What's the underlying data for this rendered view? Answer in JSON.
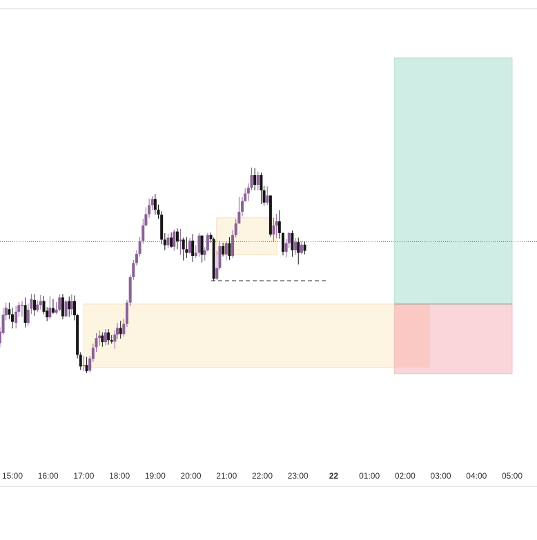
{
  "chart_data": {
    "type": "candlestick",
    "x_axis": {
      "ticks": [
        {
          "label": "15:00",
          "h": 15,
          "bold": false
        },
        {
          "label": "16:00",
          "h": 16,
          "bold": false
        },
        {
          "label": "17:00",
          "h": 17,
          "bold": false
        },
        {
          "label": "18:00",
          "h": 18,
          "bold": false
        },
        {
          "label": "19:00",
          "h": 19,
          "bold": false
        },
        {
          "label": "20:00",
          "h": 20,
          "bold": false
        },
        {
          "label": "21:00",
          "h": 21,
          "bold": false
        },
        {
          "label": "22:00",
          "h": 22,
          "bold": false
        },
        {
          "label": "23:00",
          "h": 23,
          "bold": false
        },
        {
          "label": "22",
          "h": 24,
          "bold": true
        },
        {
          "label": "01:00",
          "h": 25,
          "bold": false
        },
        {
          "label": "02:00",
          "h": 26,
          "bold": false
        },
        {
          "label": "03:00",
          "h": 27,
          "bold": false
        },
        {
          "label": "04:00",
          "h": 28,
          "bold": false
        },
        {
          "label": "05:00",
          "h": 29,
          "bold": false
        }
      ],
      "range_hours": [
        14.05,
        29.3
      ]
    },
    "y_range": [
      0,
      100
    ],
    "candles": [
      [
        14.1,
        56.0,
        58.4,
        54.0,
        60.0
      ],
      [
        14.21,
        57.6,
        54.6,
        53.0,
        59.4
      ],
      [
        14.29,
        52.8,
        48.0,
        46.0,
        54.2
      ],
      [
        14.38,
        45.0,
        42.2,
        40.0,
        47.0
      ],
      [
        14.47,
        40.0,
        37.6,
        35.6,
        42.0
      ],
      [
        14.56,
        37.0,
        30.4,
        28.0,
        38.2
      ],
      [
        14.65,
        30.0,
        34.6,
        28.4,
        36.4
      ],
      [
        14.74,
        34.0,
        41.2,
        33.2,
        44.0
      ],
      [
        14.82,
        41.0,
        44.0,
        39.0,
        46.0
      ],
      [
        14.91,
        43.4,
        41.2,
        39.4,
        46.0
      ],
      [
        15.0,
        41.4,
        38.4,
        35.8,
        44.0
      ],
      [
        15.1,
        38.0,
        42.4,
        35.8,
        44.6
      ],
      [
        15.18,
        42.4,
        45.0,
        40.4,
        46.2
      ],
      [
        15.27,
        44.6,
        45.0,
        40.4,
        46.6
      ],
      [
        15.36,
        45.0,
        38.0,
        36.2,
        48.0
      ],
      [
        15.44,
        38.0,
        43.2,
        37.0,
        45.6
      ],
      [
        15.53,
        43.6,
        47.4,
        41.6,
        49.4
      ],
      [
        15.62,
        47.0,
        43.0,
        40.8,
        49.4
      ],
      [
        15.7,
        43.0,
        45.2,
        42.2,
        46.8
      ],
      [
        15.79,
        45.0,
        46.6,
        43.2,
        49.0
      ],
      [
        15.88,
        46.6,
        42.4,
        41.4,
        48.6
      ],
      [
        15.97,
        42.8,
        40.2,
        38.6,
        44.2
      ],
      [
        16.05,
        40.2,
        44.0,
        39.4,
        48.6
      ],
      [
        16.14,
        43.8,
        42.0,
        41.6,
        47.4
      ],
      [
        16.23,
        42.0,
        43.2,
        41.4,
        46.2
      ],
      [
        16.32,
        43.2,
        48.0,
        42.6,
        49.2
      ],
      [
        16.41,
        48.0,
        40.6,
        39.4,
        49.4
      ],
      [
        16.5,
        40.6,
        46.4,
        40.2,
        47.0
      ],
      [
        16.59,
        46.6,
        43.4,
        40.4,
        48.4
      ],
      [
        16.66,
        43.4,
        46.6,
        41.0,
        49.2
      ],
      [
        16.74,
        46.6,
        41.0,
        39.0,
        48.8
      ],
      [
        16.82,
        41.0,
        25.4,
        24.0,
        41.6
      ],
      [
        16.91,
        25.4,
        20.8,
        19.4,
        26.4
      ],
      [
        17.0,
        21.0,
        21.4,
        19.0,
        25.0
      ],
      [
        17.08,
        21.4,
        19.0,
        18.2,
        24.6
      ],
      [
        17.17,
        19.2,
        24.0,
        18.4,
        25.0
      ],
      [
        17.26,
        23.8,
        28.2,
        22.6,
        29.8
      ],
      [
        17.35,
        28.4,
        32.0,
        26.6,
        34.0
      ],
      [
        17.44,
        32.0,
        33.0,
        29.0,
        35.0
      ],
      [
        17.52,
        33.0,
        30.4,
        28.6,
        34.2
      ],
      [
        17.61,
        30.4,
        34.2,
        29.2,
        35.6
      ],
      [
        17.69,
        34.2,
        31.2,
        29.4,
        35.6
      ],
      [
        17.78,
        31.2,
        30.6,
        29.8,
        33.2
      ],
      [
        17.87,
        30.6,
        33.4,
        27.8,
        35.2
      ],
      [
        17.94,
        33.4,
        36.0,
        31.6,
        38.0
      ],
      [
        18.03,
        36.0,
        33.6,
        31.8,
        38.8
      ],
      [
        18.12,
        33.6,
        37.6,
        32.6,
        39.6
      ],
      [
        18.21,
        37.6,
        46.0,
        36.4,
        47.0
      ],
      [
        18.3,
        46.0,
        56.0,
        44.6,
        57.0
      ],
      [
        18.39,
        56.0,
        61.6,
        55.0,
        62.8
      ],
      [
        18.48,
        61.6,
        65.2,
        60.6,
        66.6
      ],
      [
        18.57,
        65.2,
        70.2,
        64.2,
        71.8
      ],
      [
        18.66,
        70.2,
        76.4,
        69.2,
        79.0
      ],
      [
        18.74,
        76.4,
        80.8,
        76.2,
        83.6
      ],
      [
        18.83,
        80.8,
        84.4,
        79.4,
        87.0
      ],
      [
        18.92,
        84.4,
        86.8,
        82.4,
        88.0
      ],
      [
        19.0,
        86.8,
        82.6,
        80.6,
        88.8
      ],
      [
        19.09,
        82.6,
        80.6,
        79.0,
        84.6
      ],
      [
        19.18,
        80.6,
        70.8,
        69.0,
        82.0
      ],
      [
        19.27,
        70.8,
        68.6,
        66.6,
        73.4
      ],
      [
        19.36,
        68.6,
        71.6,
        67.4,
        73.2
      ],
      [
        19.45,
        71.6,
        68.0,
        67.6,
        73.6
      ],
      [
        19.53,
        68.0,
        74.0,
        66.4,
        74.8
      ],
      [
        19.62,
        74.0,
        70.2,
        67.0,
        75.2
      ],
      [
        19.71,
        70.2,
        70.8,
        64.8,
        75.0
      ],
      [
        19.79,
        70.8,
        67.0,
        62.6,
        71.6
      ],
      [
        19.88,
        67.0,
        65.6,
        63.6,
        71.8
      ],
      [
        19.97,
        65.6,
        70.4,
        65.2,
        71.4
      ],
      [
        20.05,
        70.4,
        64.4,
        62.0,
        73.0
      ],
      [
        20.14,
        64.4,
        65.6,
        63.6,
        68.6
      ],
      [
        20.23,
        65.6,
        72.4,
        64.0,
        73.4
      ],
      [
        20.31,
        72.4,
        64.8,
        61.8,
        72.4
      ],
      [
        20.39,
        64.8,
        66.6,
        62.6,
        67.8
      ],
      [
        20.47,
        66.6,
        72.6,
        66.2,
        73.4
      ],
      [
        20.56,
        72.6,
        71.0,
        69.6,
        73.6
      ],
      [
        20.64,
        71.0,
        55.4,
        54.6,
        71.6
      ],
      [
        20.73,
        55.4,
        59.6,
        54.8,
        66.4
      ],
      [
        20.81,
        59.6,
        68.2,
        59.0,
        70.4
      ],
      [
        20.9,
        68.2,
        65.0,
        64.2,
        69.6
      ],
      [
        20.99,
        65.0,
        69.4,
        62.6,
        70.2
      ],
      [
        21.08,
        69.4,
        64.4,
        62.8,
        71.8
      ],
      [
        21.17,
        64.4,
        72.6,
        63.6,
        74.6
      ],
      [
        21.26,
        72.6,
        77.2,
        71.6,
        79.0
      ],
      [
        21.35,
        77.2,
        81.8,
        77.0,
        87.6
      ],
      [
        21.44,
        81.8,
        86.0,
        80.0,
        87.6
      ],
      [
        21.52,
        86.0,
        89.0,
        85.8,
        91.0
      ],
      [
        21.61,
        89.0,
        91.2,
        86.0,
        93.0
      ],
      [
        21.7,
        91.2,
        96.2,
        90.4,
        99.2
      ],
      [
        21.79,
        96.2,
        92.4,
        90.2,
        99.0
      ],
      [
        21.88,
        92.4,
        96.2,
        90.2,
        97.6
      ],
      [
        21.97,
        96.2,
        90.2,
        84.8,
        97.2
      ],
      [
        22.05,
        90.2,
        85.4,
        84.2,
        92.0
      ],
      [
        22.14,
        85.4,
        88.2,
        84.4,
        91.8
      ],
      [
        22.23,
        88.2,
        72.8,
        72.0,
        88.2
      ],
      [
        22.32,
        72.8,
        76.4,
        70.0,
        79.4
      ],
      [
        22.4,
        76.4,
        78.0,
        71.4,
        81.0
      ],
      [
        22.48,
        78.0,
        73.4,
        71.2,
        82.4
      ],
      [
        22.58,
        73.4,
        66.0,
        64.6,
        73.6
      ],
      [
        22.67,
        66.0,
        69.4,
        63.8,
        71.0
      ],
      [
        22.75,
        69.4,
        73.4,
        67.4,
        73.8
      ],
      [
        22.84,
        73.4,
        66.6,
        64.0,
        74.4
      ],
      [
        22.93,
        66.6,
        69.8,
        64.8,
        71.4
      ],
      [
        23.01,
        69.8,
        65.6,
        61.0,
        71.6
      ],
      [
        23.1,
        65.6,
        68.8,
        65.0,
        70.0
      ],
      [
        23.19,
        68.8,
        66.4,
        65.0,
        70.0
      ]
    ],
    "zones": [
      {
        "name": "demand-zone",
        "x1": 17.0,
        "x2": 26.7,
        "y1": 20.4,
        "y2": 45.4,
        "fill": "#fdf0d8",
        "stroke": "#f5dfbd"
      },
      {
        "name": "supply-zone",
        "x1": 20.72,
        "x2": 22.41,
        "y1": 64.8,
        "y2": 79.4,
        "fill": "#fdf0d8",
        "stroke": "#f5dfbd"
      },
      {
        "name": "target-zone",
        "x1": 25.7,
        "x2": 29.0,
        "y1": 45.4,
        "y2": 170.0,
        "fill": "#cfece5",
        "stroke": "#b9dfd6"
      },
      {
        "name": "stop-zone",
        "x1": 25.7,
        "x2": 29.0,
        "y1": 18.0,
        "y2": 45.4,
        "fill": "#f9d6d9",
        "stroke": "#f2c0c5"
      }
    ],
    "dashed_level": {
      "x1": 20.57,
      "x2": 23.78,
      "y": 54.6,
      "color": "#333333"
    },
    "current_price_line": {
      "y": 70.0,
      "color": "#7c4a8c"
    },
    "colors": {
      "bull": "#8c6199",
      "bear": "#161616",
      "axis_text": "#333333",
      "border": "#e6e6e6"
    }
  }
}
